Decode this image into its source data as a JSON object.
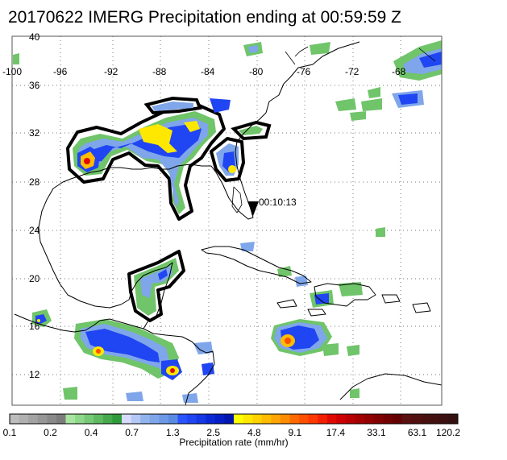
{
  "title": "20170622 IMERG Precipitation ending at 00:59:59 Z",
  "lon_labels": [
    "-100",
    "-96",
    "-92",
    "-88",
    "-84",
    "-80",
    "-76",
    "-72",
    "-68"
  ],
  "lat_labels": [
    "40",
    "36",
    "32",
    "28",
    "24",
    "20",
    "16",
    "12"
  ],
  "annotation": "00:10:13",
  "colorbar": {
    "tick_labels": [
      "0.1",
      "0.2",
      "0.4",
      "0.7",
      "1.3",
      "2.5",
      "4.8",
      "9.1",
      "17.4",
      "33.1",
      "63.1",
      "120.2"
    ],
    "label": "Precipitation rate (mm/hr)",
    "colors": [
      "#bdbdbd",
      "#b0b0b0",
      "#a3a3a3",
      "#969696",
      "#898989",
      "#7c7c7c",
      "#a8e6a0",
      "#8fd88a",
      "#76c975",
      "#5eb960",
      "#46a94c",
      "#2e9a3a",
      "#d7dcff",
      "#b4c8f5",
      "#92b4ee",
      "#7fa6ea",
      "#6c98e6",
      "#5a8ae2",
      "#2a54ff",
      "#2045f2",
      "#1637e4",
      "#0b28d6",
      "#051ec4",
      "#0015b0",
      "#ffff00",
      "#ffe800",
      "#ffd200",
      "#ffbc00",
      "#ffa400",
      "#ff8c00",
      "#ff6a00",
      "#ff5000",
      "#ff3600",
      "#f22000",
      "#e10a00",
      "#cf0000",
      "#b80000",
      "#a40000",
      "#930000",
      "#820000",
      "#720000",
      "#630000",
      "#5a1010",
      "#521010",
      "#4a1010",
      "#431010",
      "#3c1010",
      "#351010"
    ]
  }
}
